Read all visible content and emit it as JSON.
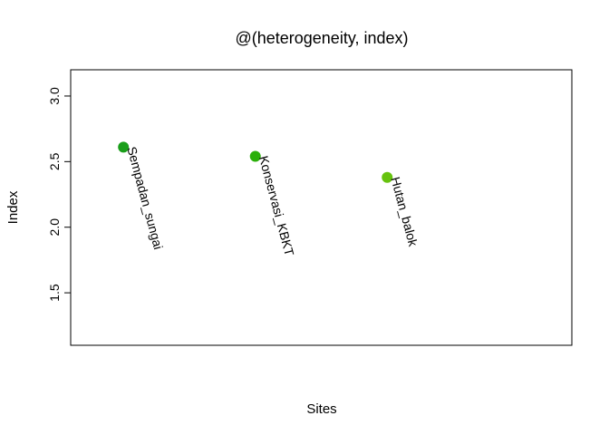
{
  "chart_data": {
    "type": "scatter",
    "title": "@(heterogeneity, index)",
    "xlabel": "Sites",
    "ylabel": "Index",
    "ylim": [
      1.1,
      3.2
    ],
    "xlim": [
      0.6,
      4.4
    ],
    "yticks": [
      "1.5",
      "2.0",
      "2.5",
      "3.0"
    ],
    "grid": false,
    "points": [
      {
        "x": 1,
        "y": 2.61,
        "label": "Sempadan_sungai",
        "color": "#1a9e1a"
      },
      {
        "x": 2,
        "y": 2.54,
        "label": "Konservasi_KBKT",
        "color": "#2aaf0a"
      },
      {
        "x": 3,
        "y": 2.38,
        "label": "Hutan_balok",
        "color": "#66c20e"
      }
    ]
  }
}
